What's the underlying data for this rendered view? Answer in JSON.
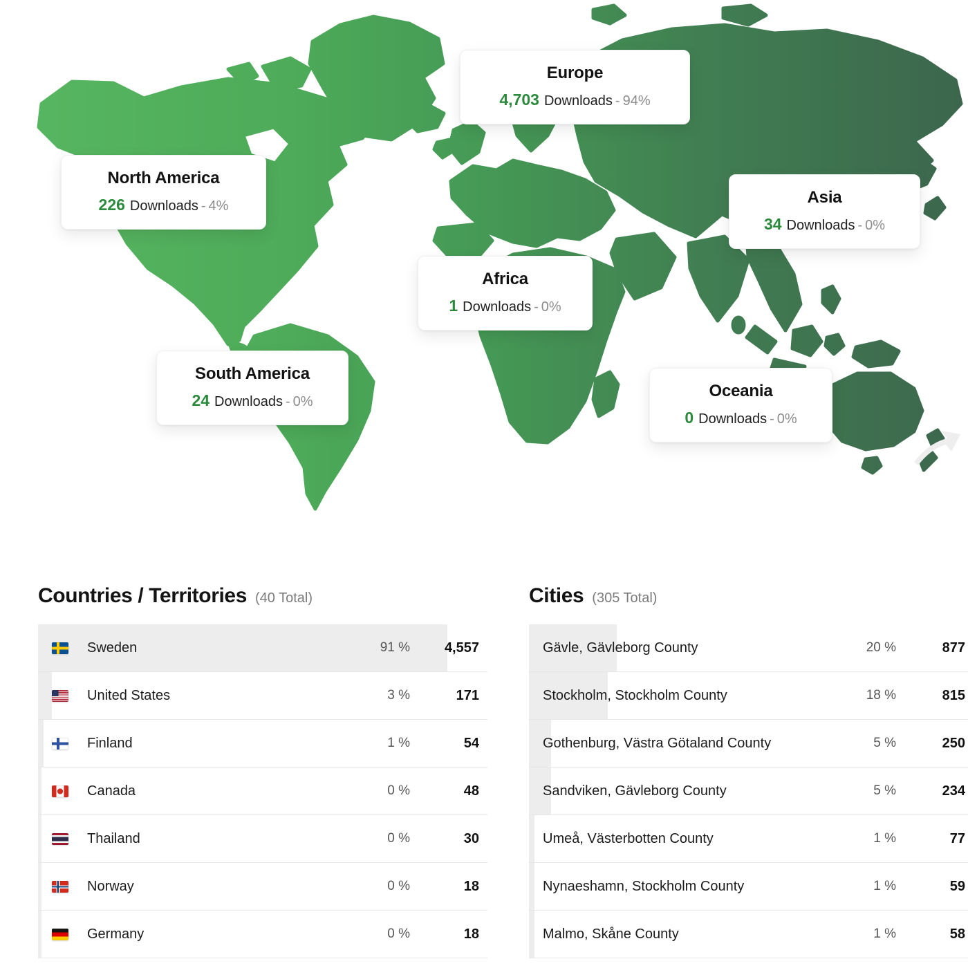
{
  "map": {
    "dash": "-",
    "regions": [
      {
        "id": "north-america",
        "name": "North America",
        "value": "226",
        "label": "Downloads",
        "percent": "4%"
      },
      {
        "id": "south-america",
        "name": "South America",
        "value": "24",
        "label": "Downloads",
        "percent": "0%"
      },
      {
        "id": "europe",
        "name": "Europe",
        "value": "4,703",
        "label": "Downloads",
        "percent": "94%"
      },
      {
        "id": "africa",
        "name": "Africa",
        "value": "1",
        "label": "Downloads",
        "percent": "0%"
      },
      {
        "id": "asia",
        "name": "Asia",
        "value": "34",
        "label": "Downloads",
        "percent": "0%"
      },
      {
        "id": "oceania",
        "name": "Oceania",
        "value": "0",
        "label": "Downloads",
        "percent": "0%"
      }
    ]
  },
  "countries": {
    "title": "Countries / Territories",
    "total": "(40 Total)",
    "rows": [
      {
        "flag": "sweden",
        "name": "Sweden",
        "percent": "91 %",
        "value": "4,557",
        "bar": 91
      },
      {
        "flag": "united-states",
        "name": "United States",
        "percent": "3 %",
        "value": "171",
        "bar": 3
      },
      {
        "flag": "finland",
        "name": "Finland",
        "percent": "1 %",
        "value": "54",
        "bar": 1.2
      },
      {
        "flag": "canada",
        "name": "Canada",
        "percent": "0 %",
        "value": "48",
        "bar": 0.8
      },
      {
        "flag": "thailand",
        "name": "Thailand",
        "percent": "0 %",
        "value": "30",
        "bar": 0.8
      },
      {
        "flag": "norway",
        "name": "Norway",
        "percent": "0 %",
        "value": "18",
        "bar": 0.8
      },
      {
        "flag": "germany",
        "name": "Germany",
        "percent": "0 %",
        "value": "18",
        "bar": 0.8
      }
    ]
  },
  "cities": {
    "title": "Cities",
    "total": "(305 Total)",
    "rows": [
      {
        "name": "Gävle, Gävleborg County",
        "percent": "20 %",
        "value": "877",
        "bar": 20
      },
      {
        "name": "Stockholm, Stockholm County",
        "percent": "18 %",
        "value": "815",
        "bar": 18
      },
      {
        "name": "Gothenburg, Västra Götaland County",
        "percent": "5 %",
        "value": "250",
        "bar": 5
      },
      {
        "name": "Sandviken, Gävleborg County",
        "percent": "5 %",
        "value": "234",
        "bar": 5
      },
      {
        "name": "Umeå, Västerbotten County",
        "percent": "1 %",
        "value": "77",
        "bar": 1.2
      },
      {
        "name": "Nynaeshamn, Stockholm County",
        "percent": "1 %",
        "value": "59",
        "bar": 1.2
      },
      {
        "name": "Malmo, Skåne County",
        "percent": "1 %",
        "value": "58",
        "bar": 1.2
      }
    ]
  },
  "colors": {
    "accent_green": "#2b8a3b",
    "map_gradient_west": "#58b761",
    "map_gradient_east": "#3c664d",
    "bar_gray": "#ededed"
  }
}
